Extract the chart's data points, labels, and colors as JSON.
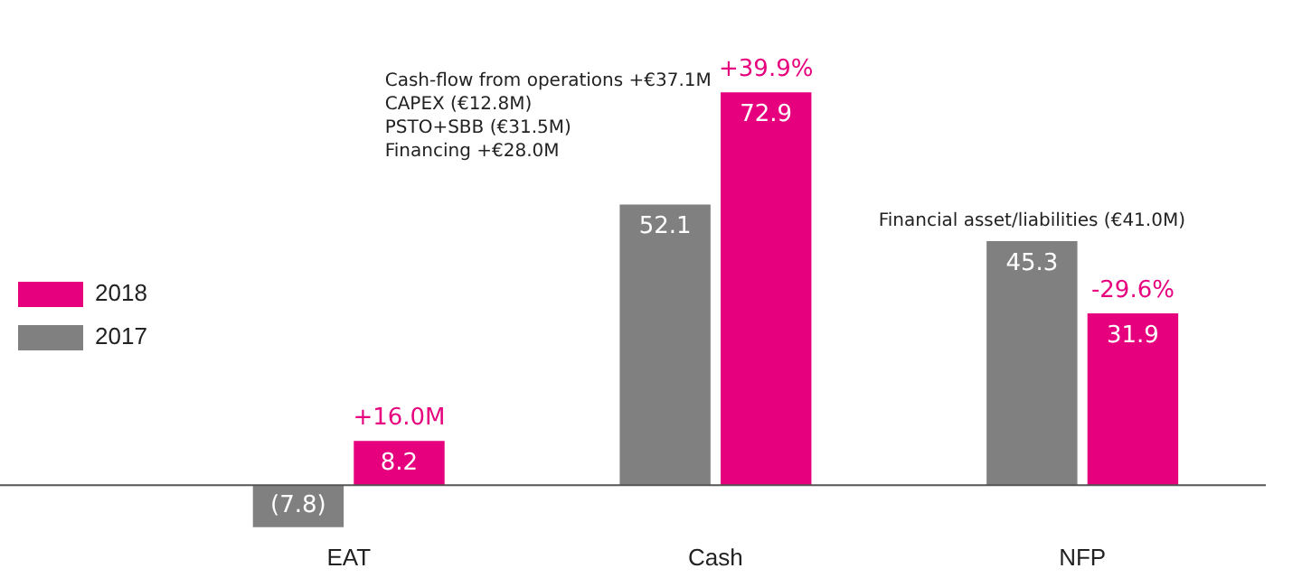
{
  "chart_data": {
    "type": "bar",
    "categories": [
      "EAT",
      "Cash",
      "NFP"
    ],
    "series": [
      {
        "name": "2017",
        "color": "#808080",
        "values": [
          -7.8,
          52.1,
          45.3
        ],
        "value_labels": [
          "(7.8)",
          "52.1",
          "45.3"
        ]
      },
      {
        "name": "2018",
        "color": "#e6007e",
        "values": [
          8.2,
          72.9,
          31.9
        ],
        "value_labels": [
          "8.2",
          "72.9",
          "31.9"
        ]
      }
    ],
    "annotations": [
      {
        "text": "+16.0M",
        "x": "EAT",
        "y": 8.2
      },
      {
        "text": "+39.9%",
        "x": "Cash",
        "y": 72.9
      },
      {
        "text": "Financial asset/liabilities (€41.0M)",
        "x": "NFP",
        "y": 45.3
      },
      {
        "text": "-29.6%",
        "x": "NFP",
        "y": 31.9
      },
      "Cash-flow from operations +€37.1M",
      "CAPEX (€12.8M)",
      "PSTO+SBB (€31.5M)",
      "Financing +€28.0M"
    ],
    "legend": "left",
    "grid": false
  }
}
